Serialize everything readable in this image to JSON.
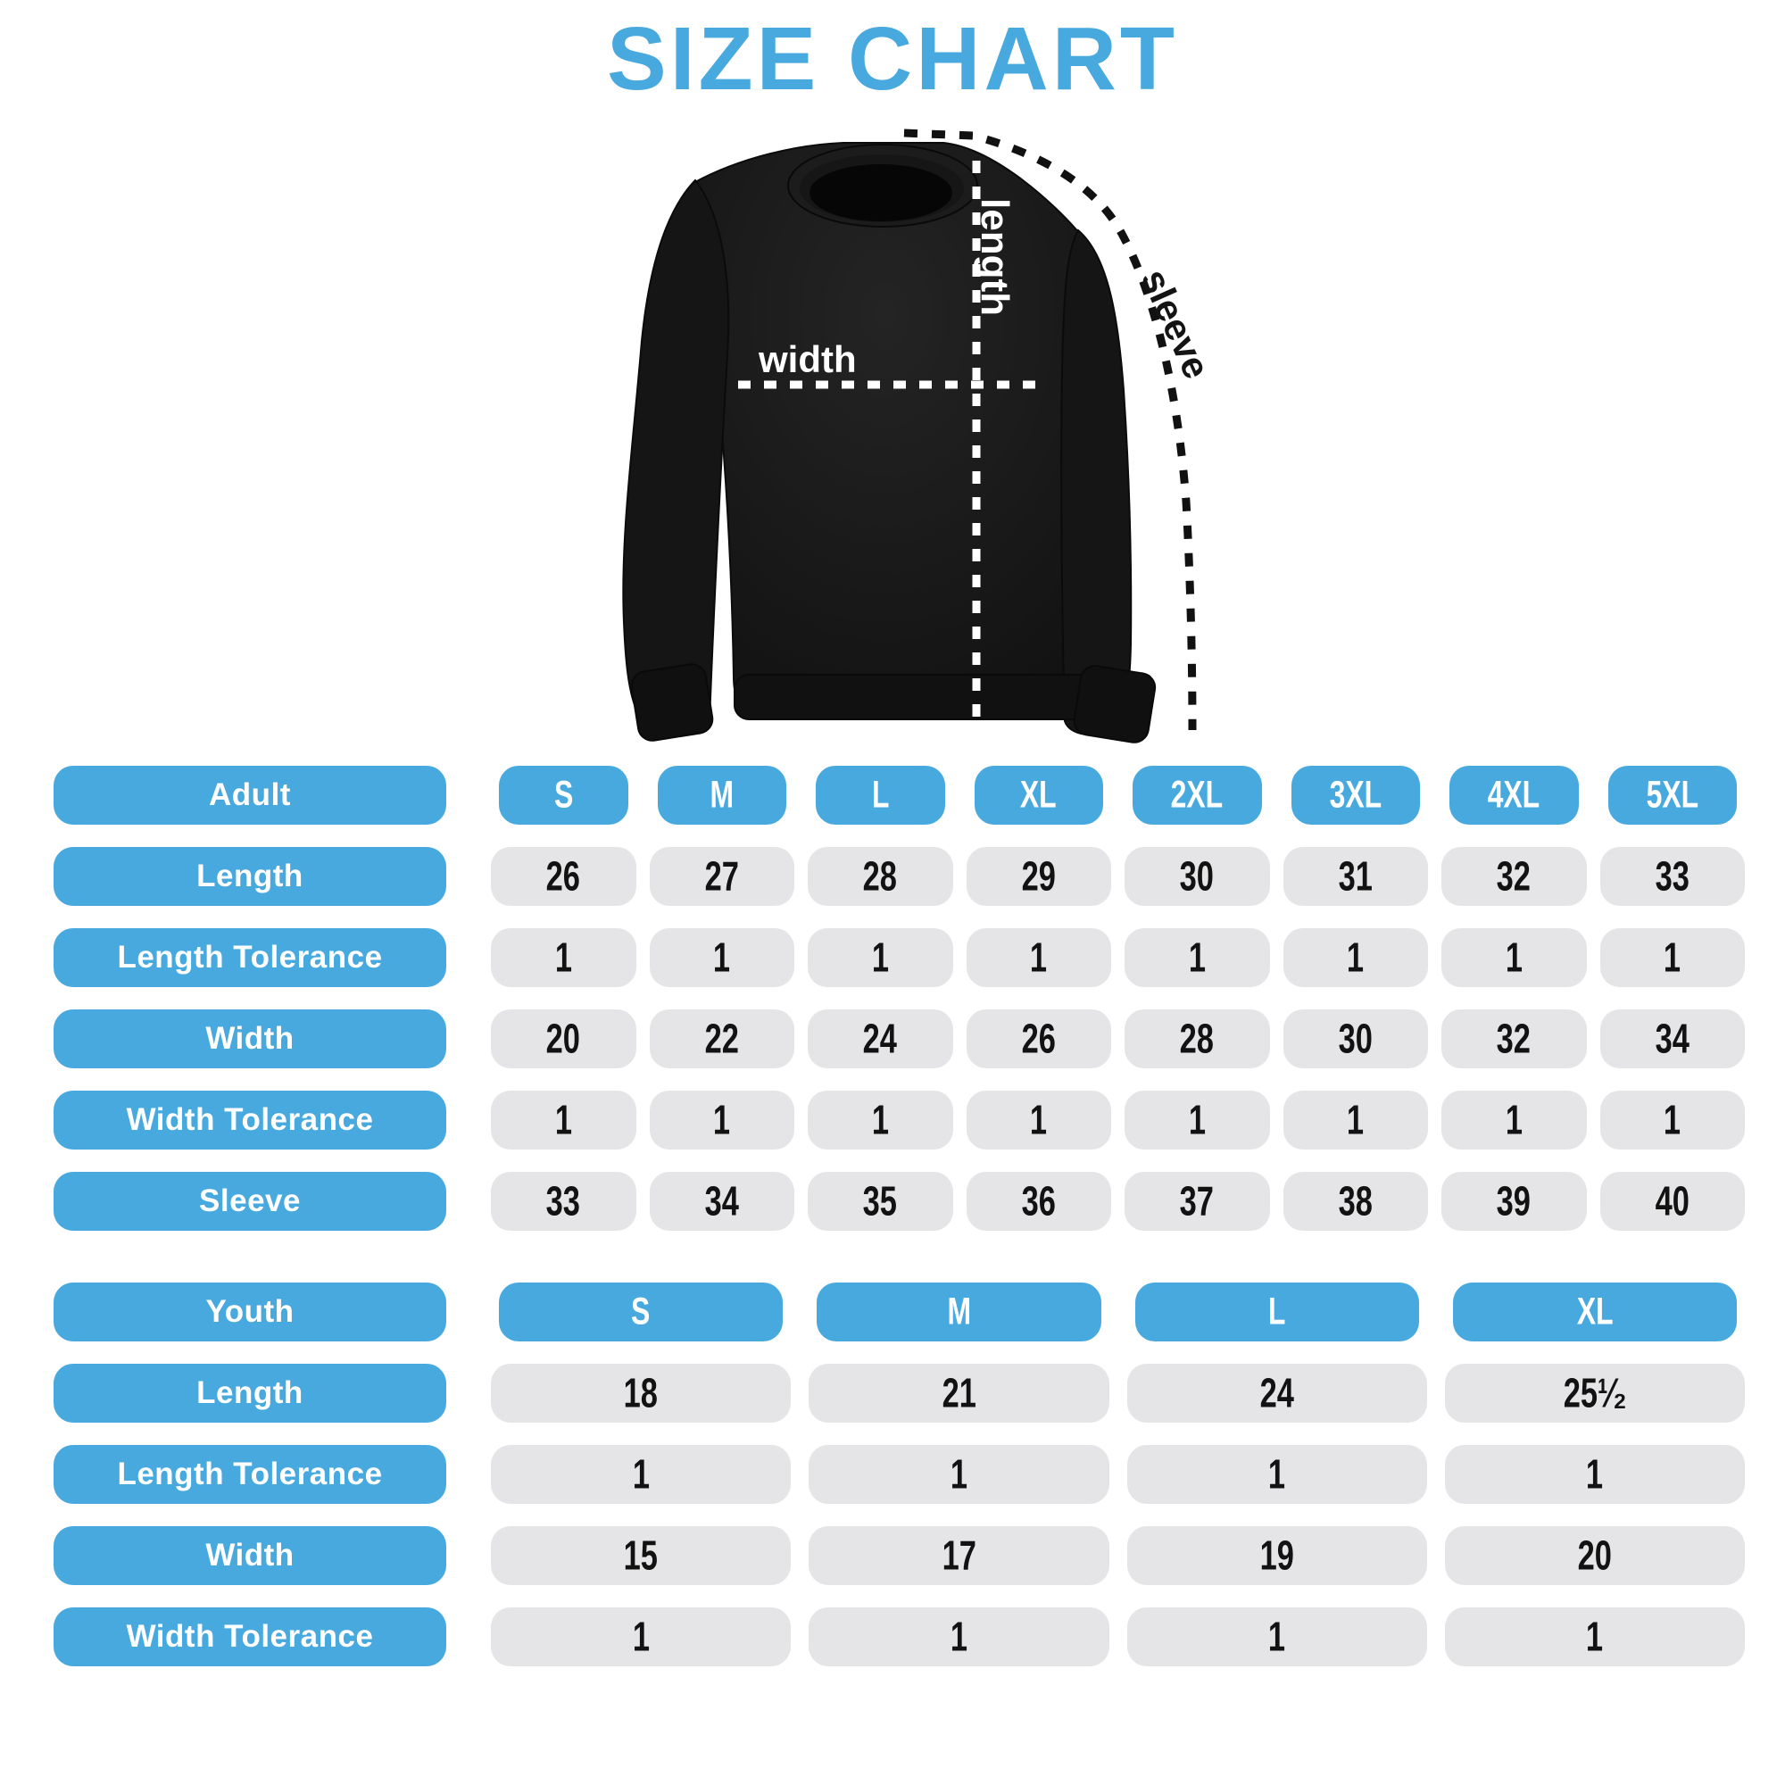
{
  "title": "SIZE CHART",
  "colors": {
    "accent_blue": "#48A9DF",
    "cell_gray": "#E5E5E7",
    "value_text": "#121212",
    "header_text": "#FFFFFF",
    "shirt_black": "#161616",
    "background": "#FFFFFF"
  },
  "diagram": {
    "garment": "crewneck-sweatshirt",
    "labels": {
      "length": "length",
      "width": "width",
      "sleeve": "sleeve"
    }
  },
  "adult_table": {
    "label": "Adult",
    "sizes": [
      "S",
      "M",
      "L",
      "XL",
      "2XL",
      "3XL",
      "4XL",
      "5XL"
    ],
    "rows": [
      {
        "label": "Length",
        "values": [
          "26",
          "27",
          "28",
          "29",
          "30",
          "31",
          "32",
          "33"
        ]
      },
      {
        "label": "Length Tolerance",
        "values": [
          "1",
          "1",
          "1",
          "1",
          "1",
          "1",
          "1",
          "1"
        ]
      },
      {
        "label": "Width",
        "values": [
          "20",
          "22",
          "24",
          "26",
          "28",
          "30",
          "32",
          "34"
        ]
      },
      {
        "label": "Width Tolerance",
        "values": [
          "1",
          "1",
          "1",
          "1",
          "1",
          "1",
          "1",
          "1"
        ]
      },
      {
        "label": "Sleeve",
        "values": [
          "33",
          "34",
          "35",
          "36",
          "37",
          "38",
          "39",
          "40"
        ]
      }
    ]
  },
  "youth_table": {
    "label": "Youth",
    "sizes": [
      "S",
      "M",
      "L",
      "XL"
    ],
    "rows": [
      {
        "label": "Length",
        "values": [
          "18",
          "21",
          "24",
          "25¹⁄₂"
        ]
      },
      {
        "label": "Length Tolerance",
        "values": [
          "1",
          "1",
          "1",
          "1"
        ]
      },
      {
        "label": "Width",
        "values": [
          "15",
          "17",
          "19",
          "20"
        ]
      },
      {
        "label": "Width Tolerance",
        "values": [
          "1",
          "1",
          "1",
          "1"
        ]
      }
    ]
  },
  "chart_data": [
    {
      "type": "table",
      "title": "Adult sizes",
      "columns": [
        "Adult",
        "S",
        "M",
        "L",
        "XL",
        "2XL",
        "3XL",
        "4XL",
        "5XL"
      ],
      "rows": [
        [
          "Length",
          26,
          27,
          28,
          29,
          30,
          31,
          32,
          33
        ],
        [
          "Length Tolerance",
          1,
          1,
          1,
          1,
          1,
          1,
          1,
          1
        ],
        [
          "Width",
          20,
          22,
          24,
          26,
          28,
          30,
          32,
          34
        ],
        [
          "Width Tolerance",
          1,
          1,
          1,
          1,
          1,
          1,
          1,
          1
        ],
        [
          "Sleeve",
          33,
          34,
          35,
          36,
          37,
          38,
          39,
          40
        ]
      ]
    },
    {
      "type": "table",
      "title": "Youth sizes",
      "columns": [
        "Youth",
        "S",
        "M",
        "L",
        "XL"
      ],
      "rows": [
        [
          "Length",
          18,
          21,
          24,
          25.5
        ],
        [
          "Length Tolerance",
          1,
          1,
          1,
          1
        ],
        [
          "Width",
          15,
          17,
          19,
          20
        ],
        [
          "Width Tolerance",
          1,
          1,
          1,
          1
        ]
      ]
    }
  ]
}
